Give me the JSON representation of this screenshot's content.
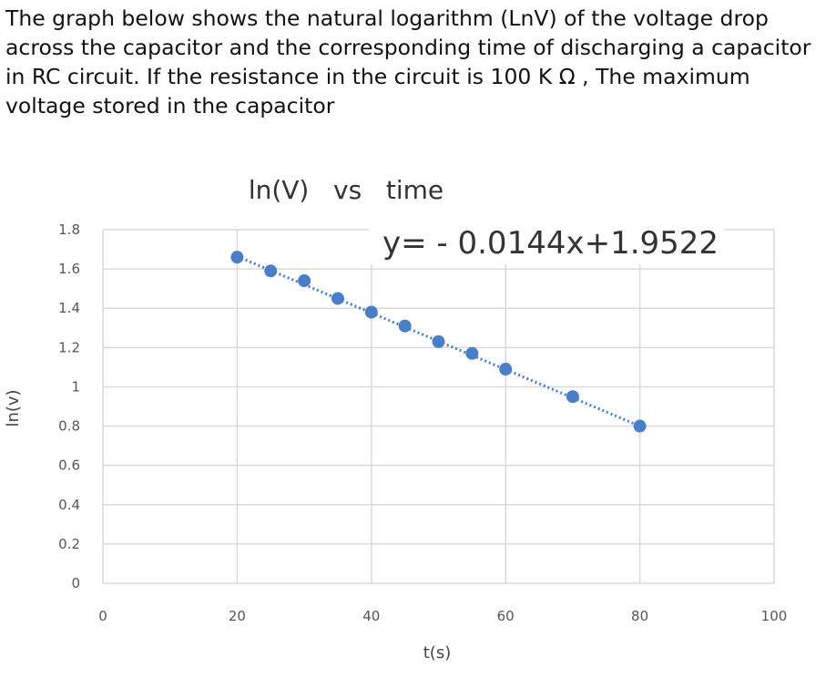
{
  "question": "The graph below shows the natural logarithm (LnV) of the voltage drop across the capacitor and the corresponding time of discharging a capacitor in RC circuit. If the resistance in the circuit is 100 K Ω , The maximum voltage stored in the capacitor",
  "colors": {
    "marker": "#4a7ec8",
    "trendline": "#4a7ec8",
    "grid": "#d9d9d9",
    "text": "#333333"
  },
  "chart_data": {
    "type": "scatter",
    "title": "ln(V)   vs   time",
    "xlabel": "t(s)",
    "ylabel": "ln(v)",
    "xlim": [
      0,
      100
    ],
    "ylim": [
      0,
      1.8
    ],
    "x_ticks": [
      "0",
      "20",
      "40",
      "60",
      "80",
      "100"
    ],
    "y_ticks": [
      "0",
      "0.2",
      "0.4",
      "0.6",
      "0.8",
      "1",
      "1.2",
      "1.4",
      "1.6",
      "1.8"
    ],
    "grid": true,
    "trendline": {
      "label": "y= - 0.0144x+1.9522",
      "slope": -0.0144,
      "intercept": 1.9522,
      "style": "dotted",
      "x_range": [
        20,
        80
      ]
    },
    "points": [
      {
        "x": 20,
        "y": 1.66
      },
      {
        "x": 25,
        "y": 1.59
      },
      {
        "x": 30,
        "y": 1.54
      },
      {
        "x": 35,
        "y": 1.45
      },
      {
        "x": 40,
        "y": 1.38
      },
      {
        "x": 45,
        "y": 1.31
      },
      {
        "x": 50,
        "y": 1.23
      },
      {
        "x": 55,
        "y": 1.17
      },
      {
        "x": 60,
        "y": 1.09
      },
      {
        "x": 70,
        "y": 0.95
      },
      {
        "x": 80,
        "y": 0.8
      }
    ]
  }
}
